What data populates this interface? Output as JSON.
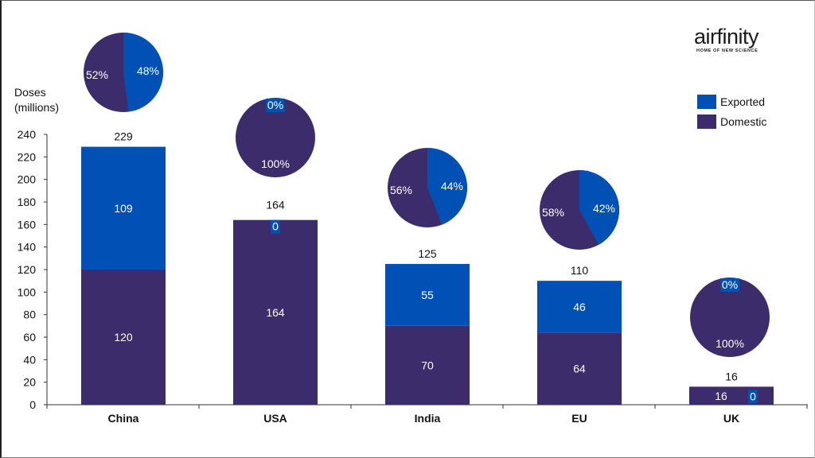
{
  "brand": {
    "name": "airfinity",
    "tagline": "HOME OF NEW SCIENCE"
  },
  "chart_data": {
    "type": "bar",
    "stacked": true,
    "categories": [
      "China",
      "USA",
      "India",
      "EU",
      "UK"
    ],
    "ylabel": "Doses (millions)",
    "ylim": [
      0,
      240
    ],
    "yticks": [
      0,
      20,
      40,
      60,
      80,
      100,
      120,
      140,
      160,
      180,
      200,
      220,
      240
    ],
    "grid": false,
    "legend_position": "top-right",
    "series": [
      {
        "name": "Domestic",
        "color": "#3d2c6b",
        "values": [
          120,
          164,
          70,
          64,
          16
        ]
      },
      {
        "name": "Exported",
        "color": "#0050b5",
        "values": [
          109,
          0,
          55,
          46,
          0
        ]
      }
    ],
    "totals": [
      229,
      164,
      125,
      110,
      16
    ],
    "pies": [
      {
        "category": "China",
        "exported_pct": "48%",
        "domestic_pct": "52%",
        "exported_share": 0.48
      },
      {
        "category": "USA",
        "exported_pct": "0%",
        "domestic_pct": "100%",
        "exported_share": 0
      },
      {
        "category": "India",
        "exported_pct": "44%",
        "domestic_pct": "56%",
        "exported_share": 0.44
      },
      {
        "category": "EU",
        "exported_pct": "42%",
        "domestic_pct": "58%",
        "exported_share": 0.42
      },
      {
        "category": "UK",
        "exported_pct": "0%",
        "domestic_pct": "100%",
        "exported_share": 0
      }
    ]
  }
}
